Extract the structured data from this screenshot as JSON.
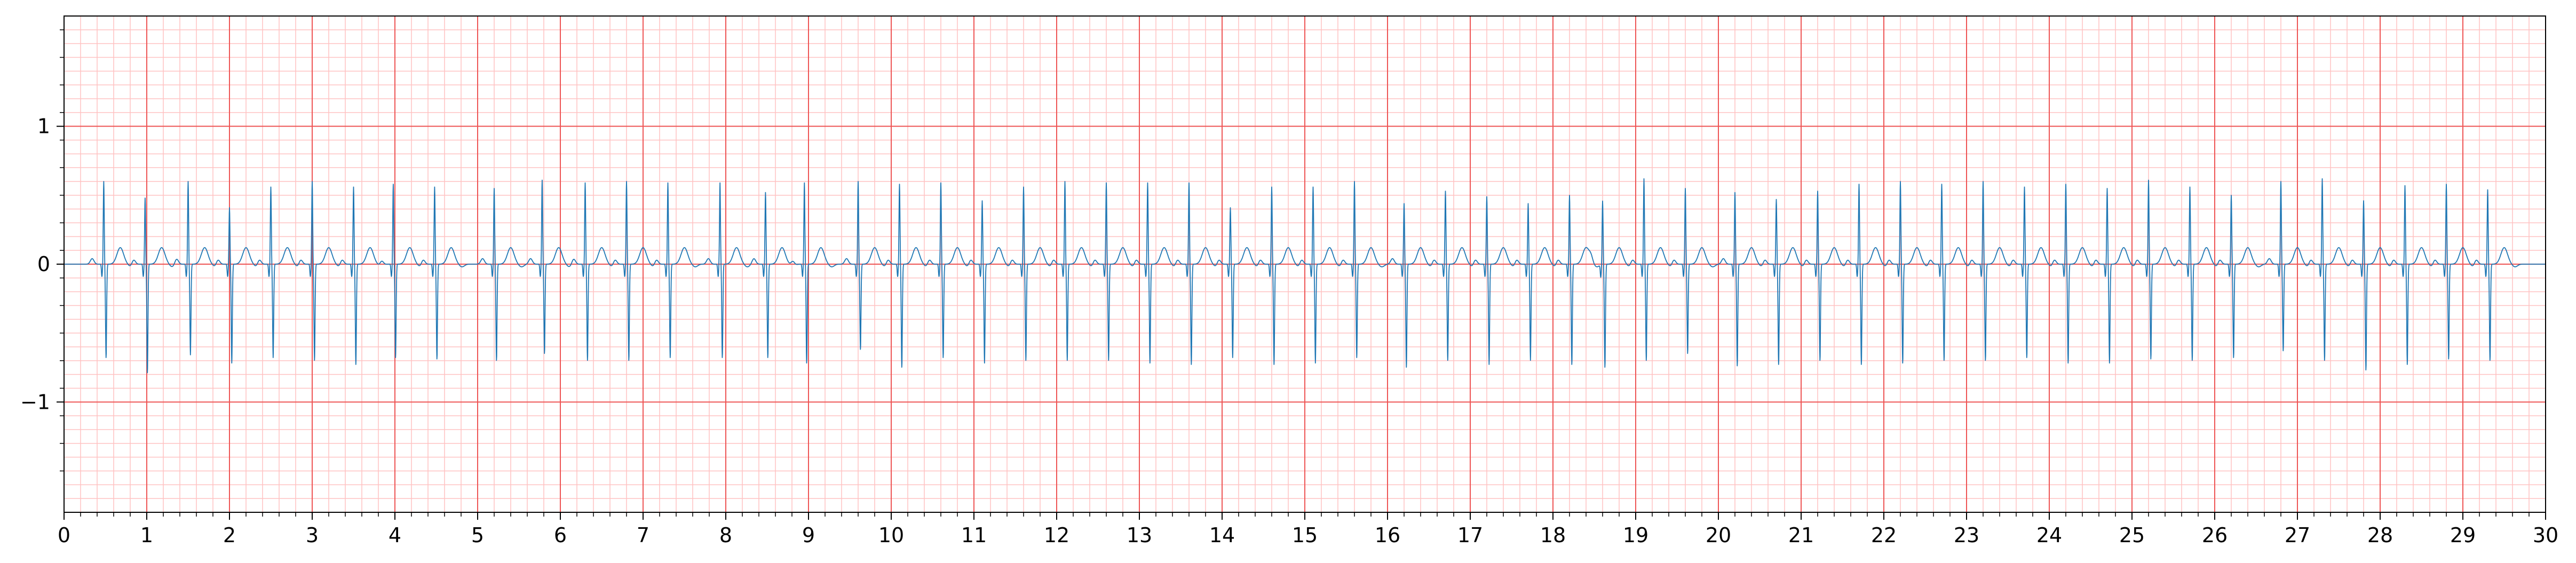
{
  "chart_data": {
    "type": "line",
    "title": "",
    "xlabel": "",
    "ylabel": "",
    "xlim": [
      0,
      30
    ],
    "ylim": [
      -1.8,
      1.8
    ],
    "x_ticks": [
      0,
      1,
      2,
      3,
      4,
      5,
      6,
      7,
      8,
      9,
      10,
      11,
      12,
      13,
      14,
      15,
      16,
      17,
      18,
      19,
      20,
      21,
      22,
      23,
      24,
      25,
      26,
      27,
      28,
      29,
      30
    ],
    "x_tick_labels": [
      "0",
      "1",
      "2",
      "3",
      "4",
      "5",
      "6",
      "7",
      "8",
      "9",
      "10",
      "11",
      "12",
      "13",
      "14",
      "15",
      "16",
      "17",
      "18",
      "19",
      "20",
      "21",
      "22",
      "23",
      "24",
      "25",
      "26",
      "27",
      "28",
      "29",
      "30"
    ],
    "y_ticks": [
      -1,
      0,
      1
    ],
    "y_tick_labels": [
      "−1",
      "0",
      "1"
    ],
    "grid": {
      "major": true,
      "minor": true,
      "major_x_step": 1,
      "major_y_step": 1,
      "minor_x_step": 0.2,
      "minor_y_step": 0.1
    },
    "colors": {
      "signal": "#1f77b4",
      "major_grid": "#ee5555",
      "minor_grid": "#ffc2c2",
      "axes": "#000000"
    },
    "beat_interval_s": 0.505,
    "first_beat_s": 0.48,
    "series": [
      {
        "r_wave_times_s": [
          0.48,
          0.98,
          1.5,
          2.0,
          2.5,
          3.0,
          3.5,
          3.98,
          4.48,
          5.2,
          5.78,
          6.3,
          6.8,
          7.3,
          7.93,
          8.48,
          8.95,
          9.6,
          10.1,
          10.6,
          11.1,
          11.6,
          12.1,
          12.6,
          13.1,
          13.6,
          14.1,
          14.6,
          15.1,
          15.6,
          16.2,
          16.7,
          17.2,
          17.7,
          18.2,
          18.6,
          19.1,
          19.6,
          20.2,
          20.7,
          21.2,
          21.7,
          22.2,
          22.7,
          23.2,
          23.7,
          24.2,
          24.7,
          25.2,
          25.7,
          26.2,
          26.8,
          27.3,
          27.8,
          28.3,
          28.8,
          29.3
        ],
        "r_wave_amplitudes": [
          0.6,
          0.48,
          0.6,
          0.41,
          0.56,
          0.6,
          0.56,
          0.58,
          0.56,
          0.55,
          0.61,
          0.59,
          0.6,
          0.59,
          0.59,
          0.52,
          0.59,
          0.6,
          0.58,
          0.59,
          0.46,
          0.56,
          0.6,
          0.59,
          0.59,
          0.59,
          0.41,
          0.56,
          0.56,
          0.6,
          0.44,
          0.53,
          0.49,
          0.44,
          0.5,
          0.46,
          0.62,
          0.55,
          0.52,
          0.47,
          0.53,
          0.58,
          0.6,
          0.58,
          0.6,
          0.56,
          0.58,
          0.55,
          0.61,
          0.56,
          0.5,
          0.6,
          0.62,
          0.46,
          0.57,
          0.58,
          0.54
        ],
        "s_wave_amplitudes": [
          -0.68,
          -0.79,
          -0.66,
          -0.72,
          -0.68,
          -0.7,
          -0.73,
          -0.68,
          -0.69,
          -0.7,
          -0.65,
          -0.7,
          -0.7,
          -0.68,
          -0.68,
          -0.68,
          -0.72,
          -0.62,
          -0.75,
          -0.68,
          -0.72,
          -0.7,
          -0.7,
          -0.7,
          -0.72,
          -0.73,
          -0.68,
          -0.73,
          -0.72,
          -0.68,
          -0.75,
          -0.7,
          -0.73,
          -0.7,
          -0.73,
          -0.75,
          -0.7,
          -0.65,
          -0.74,
          -0.73,
          -0.7,
          -0.73,
          -0.72,
          -0.7,
          -0.7,
          -0.68,
          -0.72,
          -0.72,
          -0.69,
          -0.7,
          -0.68,
          -0.63,
          -0.7,
          -0.77,
          -0.73,
          -0.69,
          -0.7
        ],
        "t_wave_amplitude": 0.12,
        "p_wave_amplitude": 0.04
      }
    ]
  }
}
